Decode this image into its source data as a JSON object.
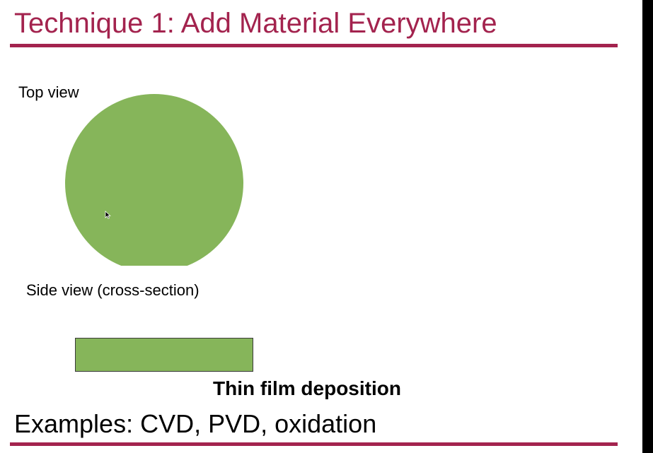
{
  "slide": {
    "title": "Technique 1:  Add Material Everywhere",
    "top_view_label": "Top view",
    "side_view_label": "Side view (cross-section)",
    "caption": "Thin film deposition",
    "examples": "Examples: CVD, PVD, oxidation"
  },
  "colors": {
    "accent": "#a3234e",
    "material": "#86b55a",
    "outline": "#3a3a3a",
    "background": "#ffffff",
    "edge_bar": "#000000"
  },
  "icons": {
    "cursor": "mouse-pointer-icon"
  }
}
